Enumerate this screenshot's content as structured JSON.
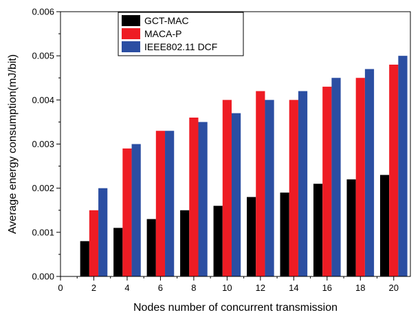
{
  "chart_data": {
    "type": "bar",
    "xlabel": "Nodes number of concurrent transmission",
    "ylabel": "Average energy consumption(mJ/bit)",
    "categories": [
      2,
      4,
      6,
      8,
      10,
      12,
      14,
      16,
      18,
      20
    ],
    "x_ticks": [
      "0",
      "2",
      "4",
      "6",
      "8",
      "10",
      "12",
      "14",
      "16",
      "18",
      "20"
    ],
    "xlim": [
      0,
      21
    ],
    "ylim": [
      0,
      0.006
    ],
    "y_ticks": [
      "0.000",
      "0.001",
      "0.002",
      "0.003",
      "0.004",
      "0.005",
      "0.006"
    ],
    "legend_position": "top-left",
    "grid": false,
    "series": [
      {
        "name": "GCT-MAC",
        "color": "#000000",
        "values": [
          0.0008,
          0.0011,
          0.0013,
          0.0015,
          0.0016,
          0.0018,
          0.0019,
          0.0021,
          0.0022,
          0.0023
        ]
      },
      {
        "name": "MACA-P",
        "color": "#ee1c24",
        "values": [
          0.0015,
          0.0029,
          0.0033,
          0.0036,
          0.004,
          0.0042,
          0.004,
          0.0043,
          0.0045,
          0.0048
        ]
      },
      {
        "name": "IEEE802.11 DCF",
        "color": "#2b4ea2",
        "values": [
          0.002,
          0.003,
          0.0033,
          0.0035,
          0.0037,
          0.004,
          0.0042,
          0.0045,
          0.0047,
          0.005
        ]
      }
    ]
  }
}
